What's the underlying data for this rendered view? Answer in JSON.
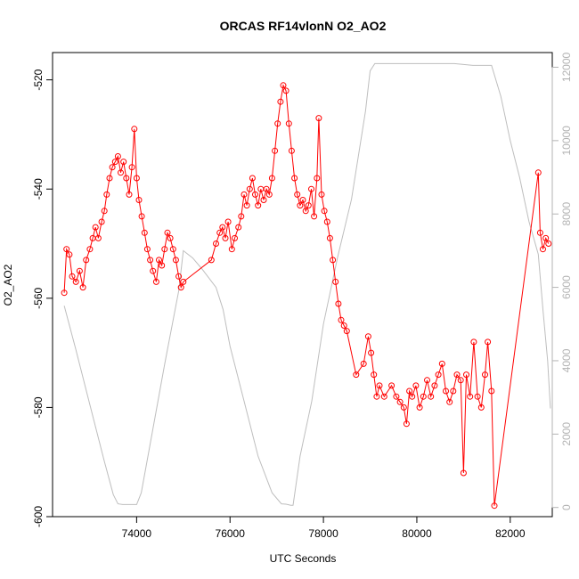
{
  "chart_data": {
    "type": "line",
    "title": "ORCAS RF14vlonN O2_AO2",
    "xlabel": "UTC Seconds",
    "ylabel": "O2_AO2",
    "xlim": [
      72200,
      82900
    ],
    "ylim": [
      -600,
      -515
    ],
    "y2lim": [
      -250,
      12400
    ],
    "x_ticks": [
      "74000",
      "76000",
      "78000",
      "80000",
      "82000"
    ],
    "y_ticks": [
      "-600",
      "-580",
      "-560",
      "-540",
      "-520"
    ],
    "y2_ticks": [
      "0",
      "2000",
      "4000",
      "6000",
      "8000",
      "10000",
      "12000"
    ],
    "grid": false,
    "legend": "none",
    "colors": {
      "o2": "#ff0000",
      "altitude": "#bebebe"
    },
    "series": [
      {
        "axis": "left",
        "style": "line+open-circles",
        "points": [
          [
            72450,
            -559
          ],
          [
            72500,
            -551
          ],
          [
            72560,
            -552
          ],
          [
            72620,
            -556
          ],
          [
            72700,
            -557
          ],
          [
            72780,
            -555
          ],
          [
            72850,
            -558
          ],
          [
            72920,
            -553
          ],
          [
            73000,
            -551
          ],
          [
            73060,
            -549
          ],
          [
            73120,
            -547
          ],
          [
            73180,
            -549
          ],
          [
            73250,
            -546
          ],
          [
            73310,
            -544
          ],
          [
            73360,
            -541
          ],
          [
            73420,
            -538
          ],
          [
            73480,
            -536
          ],
          [
            73540,
            -535
          ],
          [
            73600,
            -534
          ],
          [
            73660,
            -537
          ],
          [
            73720,
            -535
          ],
          [
            73780,
            -538
          ],
          [
            73840,
            -541
          ],
          [
            73900,
            -536
          ],
          [
            73950,
            -529
          ],
          [
            74000,
            -538
          ],
          [
            74050,
            -542
          ],
          [
            74110,
            -545
          ],
          [
            74170,
            -548
          ],
          [
            74230,
            -551
          ],
          [
            74290,
            -553
          ],
          [
            74350,
            -555
          ],
          [
            74420,
            -557
          ],
          [
            74480,
            -553
          ],
          [
            74540,
            -554
          ],
          [
            74600,
            -551
          ],
          [
            74660,
            -548
          ],
          [
            74720,
            -549
          ],
          [
            74780,
            -551
          ],
          [
            74840,
            -553
          ],
          [
            74900,
            -556
          ],
          [
            74950,
            -558
          ],
          [
            75000,
            -557
          ],
          [
            75600,
            -553
          ],
          [
            75700,
            -550
          ],
          [
            75780,
            -548
          ],
          [
            75840,
            -547
          ],
          [
            75900,
            -549
          ],
          [
            75960,
            -546
          ],
          [
            76040,
            -551
          ],
          [
            76100,
            -549
          ],
          [
            76180,
            -547
          ],
          [
            76240,
            -545
          ],
          [
            76300,
            -541
          ],
          [
            76360,
            -543
          ],
          [
            76420,
            -540
          ],
          [
            76480,
            -538
          ],
          [
            76540,
            -541
          ],
          [
            76600,
            -543
          ],
          [
            76660,
            -540
          ],
          [
            76720,
            -542
          ],
          [
            76780,
            -540
          ],
          [
            76840,
            -541
          ],
          [
            76900,
            -538
          ],
          [
            76960,
            -533
          ],
          [
            77020,
            -528
          ],
          [
            77080,
            -524
          ],
          [
            77140,
            -521
          ],
          [
            77200,
            -522
          ],
          [
            77260,
            -528
          ],
          [
            77320,
            -533
          ],
          [
            77380,
            -538
          ],
          [
            77440,
            -541
          ],
          [
            77500,
            -543
          ],
          [
            77560,
            -542
          ],
          [
            77620,
            -544
          ],
          [
            77680,
            -543
          ],
          [
            77740,
            -540
          ],
          [
            77800,
            -545
          ],
          [
            77860,
            -538
          ],
          [
            77900,
            -527
          ],
          [
            77960,
            -541
          ],
          [
            78020,
            -544
          ],
          [
            78080,
            -546
          ],
          [
            78140,
            -549
          ],
          [
            78200,
            -553
          ],
          [
            78260,
            -557
          ],
          [
            78320,
            -561
          ],
          [
            78380,
            -564
          ],
          [
            78440,
            -565
          ],
          [
            78500,
            -566
          ],
          [
            78700,
            -574
          ],
          [
            78860,
            -572
          ],
          [
            78960,
            -567
          ],
          [
            79020,
            -570
          ],
          [
            79080,
            -574
          ],
          [
            79140,
            -578
          ],
          [
            79200,
            -576
          ],
          [
            79300,
            -578
          ],
          [
            79460,
            -576
          ],
          [
            79560,
            -578
          ],
          [
            79640,
            -579
          ],
          [
            79720,
            -580
          ],
          [
            79780,
            -583
          ],
          [
            79840,
            -577
          ],
          [
            79900,
            -578
          ],
          [
            79980,
            -576
          ],
          [
            80060,
            -580
          ],
          [
            80140,
            -578
          ],
          [
            80220,
            -575
          ],
          [
            80300,
            -578
          ],
          [
            80380,
            -576
          ],
          [
            80460,
            -574
          ],
          [
            80540,
            -572
          ],
          [
            80620,
            -577
          ],
          [
            80700,
            -579
          ],
          [
            80780,
            -577
          ],
          [
            80860,
            -574
          ],
          [
            80940,
            -575
          ],
          [
            81000,
            -592
          ],
          [
            81060,
            -574
          ],
          [
            81140,
            -578
          ],
          [
            81220,
            -568
          ],
          [
            81300,
            -578
          ],
          [
            81380,
            -580
          ],
          [
            81460,
            -574
          ],
          [
            81520,
            -568
          ],
          [
            81600,
            -577
          ],
          [
            81660,
            -598
          ],
          [
            82600,
            -537
          ],
          [
            82640,
            -548
          ],
          [
            82700,
            -551
          ],
          [
            82760,
            -549
          ],
          [
            82820,
            -550
          ]
        ]
      },
      {
        "axis": "right",
        "style": "line",
        "points": [
          [
            72450,
            5500
          ],
          [
            72700,
            4300
          ],
          [
            73000,
            2800
          ],
          [
            73300,
            1300
          ],
          [
            73500,
            350
          ],
          [
            73600,
            100
          ],
          [
            73700,
            80
          ],
          [
            74000,
            80
          ],
          [
            74100,
            400
          ],
          [
            74300,
            1800
          ],
          [
            74600,
            3900
          ],
          [
            74900,
            5900
          ],
          [
            75000,
            7000
          ],
          [
            75200,
            6800
          ],
          [
            75400,
            6500
          ],
          [
            75700,
            6000
          ],
          [
            75850,
            5400
          ],
          [
            76000,
            4400
          ],
          [
            76300,
            2900
          ],
          [
            76600,
            1400
          ],
          [
            76900,
            400
          ],
          [
            77100,
            100
          ],
          [
            77200,
            90
          ],
          [
            77300,
            60
          ],
          [
            77350,
            60
          ],
          [
            77500,
            1400
          ],
          [
            77750,
            2900
          ],
          [
            78000,
            5000
          ],
          [
            78300,
            6800
          ],
          [
            78600,
            8400
          ],
          [
            78900,
            10800
          ],
          [
            79000,
            11900
          ],
          [
            79100,
            12100
          ],
          [
            79600,
            12100
          ],
          [
            80200,
            12100
          ],
          [
            80800,
            12100
          ],
          [
            81200,
            12050
          ],
          [
            81600,
            12050
          ],
          [
            81800,
            11200
          ],
          [
            82000,
            10000
          ],
          [
            82200,
            9000
          ],
          [
            82400,
            7800
          ],
          [
            82600,
            6900
          ],
          [
            82700,
            5400
          ],
          [
            82800,
            4000
          ],
          [
            82860,
            2700
          ]
        ]
      }
    ]
  }
}
